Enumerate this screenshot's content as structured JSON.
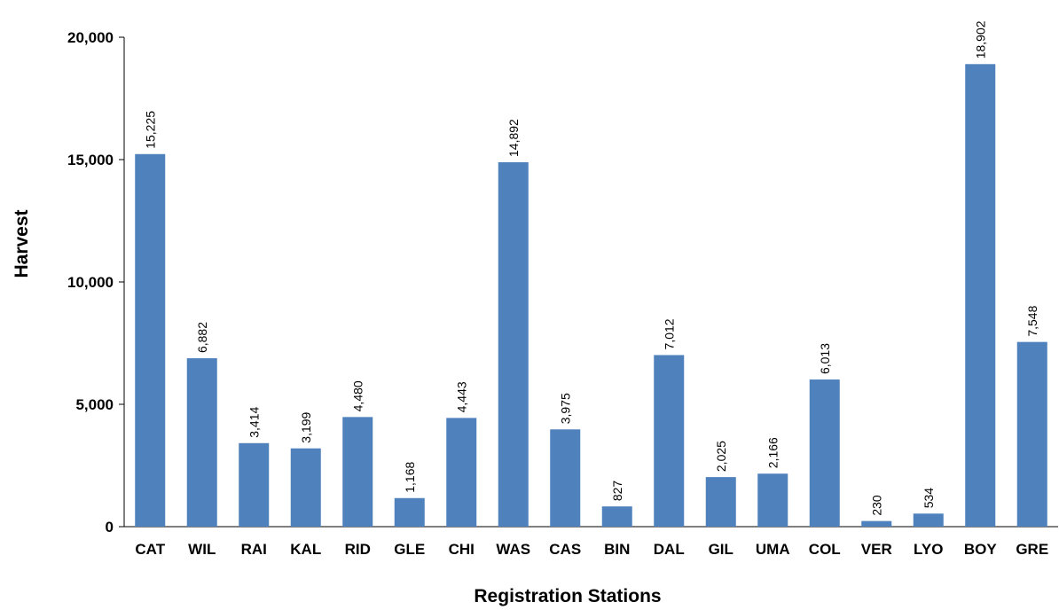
{
  "chart_data": {
    "type": "bar",
    "title": "",
    "xlabel": "Registration Stations",
    "ylabel": "Harvest",
    "categories": [
      "CAT",
      "WIL",
      "RAI",
      "KAL",
      "RID",
      "GLE",
      "CHI",
      "WAS",
      "CAS",
      "BIN",
      "DAL",
      "GIL",
      "UMA",
      "COL",
      "VER",
      "LYO",
      "BOY",
      "GRE"
    ],
    "values": [
      15225,
      6882,
      3414,
      3199,
      4480,
      1168,
      4443,
      14892,
      3975,
      827,
      7012,
      2025,
      2166,
      6013,
      230,
      534,
      18902,
      7548
    ],
    "data_labels": [
      "15,225",
      "6,882",
      "3,414",
      "3,199",
      "4,480",
      "1,168",
      "4,443",
      "14,892",
      "3,975",
      "827",
      "7,012",
      "2,025",
      "2,166",
      "6,013",
      "230",
      "534",
      "18,902",
      "7,548"
    ],
    "y_ticks": [
      0,
      5000,
      10000,
      15000,
      20000
    ],
    "y_tick_labels": [
      "0",
      "5,000",
      "10,000",
      "15,000",
      "20,000"
    ],
    "ylim": [
      0,
      20000
    ],
    "bar_color": "#4F81BD",
    "grid": false,
    "legend": "none"
  }
}
